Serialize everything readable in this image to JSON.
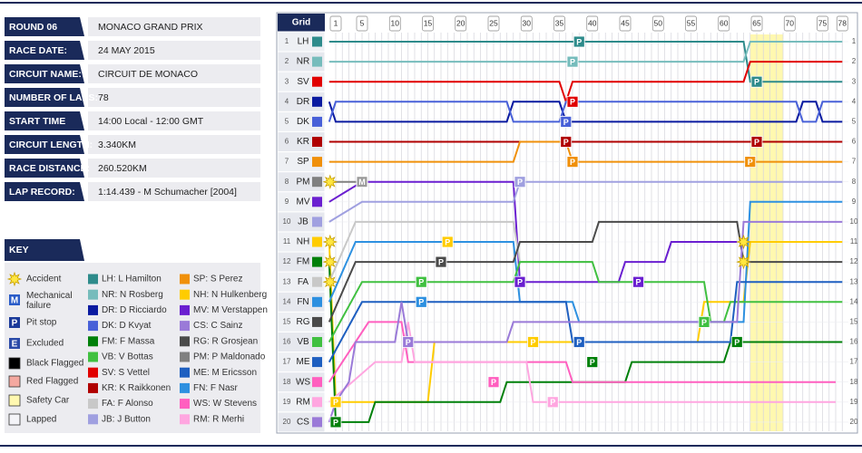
{
  "info": [
    {
      "label": "ROUND 06",
      "value": "MONACO GRAND PRIX"
    },
    {
      "label": "RACE DATE:",
      "value": "24 MAY 2015"
    },
    {
      "label": "CIRCUIT NAME:",
      "value": "CIRCUIT DE MONACO"
    },
    {
      "label": "NUMBER OF LAPS:",
      "value": "78"
    },
    {
      "label": "START TIME",
      "value": "14:00 Local - 12:00 GMT"
    },
    {
      "label": "CIRCUIT LENGTH:",
      "value": "3.340KM"
    },
    {
      "label": "RACE DISTANCE:",
      "value": "260.520KM"
    },
    {
      "label": "LAP RECORD:",
      "value": "1:14.439 - M Schumacher [2004]"
    }
  ],
  "key": {
    "title": "KEY",
    "symbols": [
      {
        "label": "Accident",
        "kind": "star"
      },
      {
        "label": "Mechanical failure",
        "kind": "letter",
        "symbol": "M",
        "color": "#2a5cc8"
      },
      {
        "label": "Pit stop",
        "kind": "letter",
        "symbol": "P",
        "color": "#1a3a9a"
      },
      {
        "label": "Excluded",
        "kind": "letter",
        "symbol": "E",
        "color": "#2a4aa8"
      },
      {
        "label": "Black Flagged",
        "kind": "box",
        "color": "#000000"
      },
      {
        "label": "Red Flagged",
        "kind": "box",
        "color": "#f4a8a0"
      },
      {
        "label": "Safety Car",
        "kind": "box",
        "color": "#fff8b0"
      },
      {
        "label": "Lapped",
        "kind": "box",
        "color": "#f4f4f8"
      }
    ],
    "drivers": [
      {
        "label": "LH: L Hamilton",
        "color": "#2e8b8b"
      },
      {
        "label": "NR: N Rosberg",
        "color": "#76bcbc"
      },
      {
        "label": "DR: D Ricciardo",
        "color": "#0a1aa0"
      },
      {
        "label": "DK: D Kvyat",
        "color": "#4860d8"
      },
      {
        "label": "FM: F Massa",
        "color": "#00800a"
      },
      {
        "label": "VB: V Bottas",
        "color": "#40c040"
      },
      {
        "label": "SV: S Vettel",
        "color": "#e10000"
      },
      {
        "label": "KR: K Raikkonen",
        "color": "#b00000"
      },
      {
        "label": "FA: F Alonso",
        "color": "#c8c8c8"
      },
      {
        "label": "JB: J Button",
        "color": "#a0a0e0"
      },
      {
        "label": "SP: S Perez",
        "color": "#f0900a"
      },
      {
        "label": "NH: N Hulkenberg",
        "color": "#ffcc00"
      },
      {
        "label": "MV: M Verstappen",
        "color": "#6a1fd0"
      },
      {
        "label": "CS: C Sainz",
        "color": "#9a7ad8"
      },
      {
        "label": "RG: R Grosjean",
        "color": "#4a4a4a"
      },
      {
        "label": "PM: P Maldonado",
        "color": "#808080"
      },
      {
        "label": "ME: M Ericsson",
        "color": "#1e5fc0"
      },
      {
        "label": "FN: F Nasr",
        "color": "#2d90e0"
      },
      {
        "label": "WS: W Stevens",
        "color": "#ff5fbf"
      },
      {
        "label": "RM: R Merhi",
        "color": "#ffa6e0"
      }
    ]
  },
  "lapchart": {
    "grid_label": "Grid",
    "lap_ticks": [
      1,
      5,
      10,
      15,
      20,
      25,
      30,
      35,
      40,
      45,
      50,
      55,
      60,
      65,
      70,
      75,
      78
    ],
    "laps": 78,
    "positions": [
      1,
      2,
      3,
      4,
      5,
      6,
      7,
      8,
      9,
      10,
      11,
      12,
      13,
      14,
      15,
      16,
      17,
      18,
      19,
      20
    ],
    "safety_car": [
      64,
      69
    ],
    "drivers": [
      {
        "code": "LH",
        "color": "#2e8b8b",
        "trace": [
          [
            0,
            1
          ],
          [
            63,
            1
          ],
          [
            64,
            3
          ],
          [
            78,
            3
          ]
        ]
      },
      {
        "code": "NR",
        "color": "#76bcbc",
        "trace": [
          [
            0,
            2
          ],
          [
            63,
            2
          ],
          [
            64,
            1
          ],
          [
            78,
            1
          ]
        ]
      },
      {
        "code": "SV",
        "color": "#e10000",
        "trace": [
          [
            0,
            3
          ],
          [
            35,
            3
          ],
          [
            36,
            4
          ],
          [
            37,
            3
          ],
          [
            63,
            3
          ],
          [
            64,
            2
          ],
          [
            78,
            2
          ]
        ]
      },
      {
        "code": "DR",
        "color": "#0a1aa0",
        "trace": [
          [
            0,
            4
          ],
          [
            1,
            5
          ],
          [
            27,
            5
          ],
          [
            28,
            4
          ],
          [
            35,
            4
          ],
          [
            36,
            5
          ],
          [
            71,
            5
          ],
          [
            72,
            4
          ],
          [
            74,
            4
          ],
          [
            75,
            5
          ],
          [
            78,
            5
          ]
        ]
      },
      {
        "code": "DK",
        "color": "#4860d8",
        "trace": [
          [
            0,
            5
          ],
          [
            1,
            4
          ],
          [
            27,
            4
          ],
          [
            28,
            5
          ],
          [
            35,
            5
          ],
          [
            36,
            4
          ],
          [
            71,
            4
          ],
          [
            72,
            5
          ],
          [
            74,
            5
          ],
          [
            75,
            4
          ],
          [
            78,
            4
          ]
        ]
      },
      {
        "code": "KR",
        "color": "#b00000",
        "trace": [
          [
            0,
            6
          ],
          [
            78,
            6
          ]
        ]
      },
      {
        "code": "SP",
        "color": "#f0900a",
        "trace": [
          [
            0,
            7
          ],
          [
            28,
            7
          ],
          [
            29,
            6
          ],
          [
            36,
            6
          ],
          [
            37,
            7
          ],
          [
            78,
            7
          ]
        ]
      },
      {
        "code": "PM",
        "color": "#808080",
        "trace": [
          [
            0,
            8
          ],
          [
            5,
            8
          ]
        ]
      },
      {
        "code": "MV",
        "color": "#6a1fd0",
        "trace": [
          [
            0,
            9
          ],
          [
            5,
            8
          ],
          [
            28,
            8
          ],
          [
            29,
            13
          ],
          [
            44,
            13
          ],
          [
            45,
            12
          ],
          [
            51,
            12
          ],
          [
            52,
            11
          ],
          [
            62,
            11
          ]
        ]
      },
      {
        "code": "JB",
        "color": "#a0a0e0",
        "trace": [
          [
            0,
            10
          ],
          [
            5,
            9
          ],
          [
            28,
            9
          ],
          [
            29,
            8
          ],
          [
            78,
            8
          ]
        ]
      },
      {
        "code": "NH",
        "color": "#ffcc00",
        "trace": [
          [
            0,
            11
          ],
          [
            1,
            19
          ],
          [
            15,
            19
          ],
          [
            16,
            16
          ],
          [
            56,
            16
          ],
          [
            57,
            14
          ],
          [
            63,
            14
          ],
          [
            64,
            11
          ],
          [
            78,
            11
          ]
        ]
      },
      {
        "code": "FM",
        "color": "#00800a",
        "trace": [
          [
            0,
            12
          ],
          [
            1,
            20
          ],
          [
            6,
            20
          ],
          [
            7,
            19
          ],
          [
            26,
            19
          ],
          [
            27,
            18
          ],
          [
            45,
            18
          ],
          [
            46,
            17
          ],
          [
            60,
            17
          ],
          [
            61,
            16
          ],
          [
            78,
            16
          ]
        ]
      },
      {
        "code": "FA",
        "color": "#c8c8c8",
        "trace": [
          [
            0,
            13
          ],
          [
            4,
            10
          ],
          [
            28,
            10
          ],
          [
            29,
            12
          ],
          [
            40,
            12
          ]
        ]
      },
      {
        "code": "FN",
        "color": "#2d90e0",
        "trace": [
          [
            0,
            14
          ],
          [
            4,
            11
          ],
          [
            28,
            11
          ],
          [
            29,
            14
          ],
          [
            37,
            14
          ],
          [
            38,
            15
          ],
          [
            63,
            15
          ],
          [
            64,
            9
          ],
          [
            78,
            9
          ]
        ]
      },
      {
        "code": "RG",
        "color": "#4a4a4a",
        "trace": [
          [
            0,
            15
          ],
          [
            4,
            12
          ],
          [
            28,
            12
          ],
          [
            29,
            11
          ],
          [
            40,
            11
          ],
          [
            41,
            10
          ],
          [
            62,
            10
          ],
          [
            63,
            12
          ],
          [
            78,
            12
          ]
        ]
      },
      {
        "code": "VB",
        "color": "#40c040",
        "trace": [
          [
            0,
            16
          ],
          [
            5,
            13
          ],
          [
            28,
            13
          ],
          [
            29,
            12
          ],
          [
            40,
            12
          ],
          [
            41,
            13
          ],
          [
            57,
            13
          ],
          [
            58,
            15
          ],
          [
            60,
            15
          ],
          [
            61,
            14
          ],
          [
            78,
            14
          ]
        ]
      },
      {
        "code": "ME",
        "color": "#1e5fc0",
        "trace": [
          [
            0,
            17
          ],
          [
            5,
            14
          ],
          [
            36,
            14
          ],
          [
            37,
            16
          ],
          [
            61,
            16
          ],
          [
            62,
            13
          ],
          [
            78,
            13
          ]
        ]
      },
      {
        "code": "WS",
        "color": "#ff5fbf",
        "trace": [
          [
            0,
            18
          ],
          [
            6,
            15
          ],
          [
            11,
            15
          ],
          [
            12,
            17
          ],
          [
            36,
            17
          ],
          [
            37,
            18
          ],
          [
            77,
            18
          ]
        ]
      },
      {
        "code": "RM",
        "color": "#ffa6e0",
        "trace": [
          [
            0,
            19
          ],
          [
            7,
            17
          ],
          [
            11,
            17
          ],
          [
            12,
            15
          ],
          [
            13,
            17
          ],
          [
            30,
            17
          ],
          [
            31,
            19
          ],
          [
            77,
            19
          ]
        ]
      },
      {
        "code": "CS",
        "color": "#9a7ad8",
        "trace": [
          [
            0,
            20
          ],
          [
            1,
            19
          ],
          [
            3,
            18
          ],
          [
            4,
            16
          ],
          [
            10,
            16
          ],
          [
            11,
            14
          ],
          [
            12,
            16
          ],
          [
            27,
            16
          ],
          [
            28,
            15
          ],
          [
            62,
            15
          ],
          [
            63,
            10
          ],
          [
            78,
            10
          ]
        ]
      }
    ],
    "pits": [
      {
        "driver": "LH",
        "lap": 38,
        "position": 1
      },
      {
        "driver": "NR",
        "lap": 37,
        "position": 2
      },
      {
        "driver": "LH",
        "lap": 65,
        "position": 3
      },
      {
        "driver": "SV",
        "lap": 37,
        "position": 4
      },
      {
        "driver": "DK",
        "lap": 36,
        "position": 5
      },
      {
        "driver": "KR",
        "lap": 36,
        "position": 6
      },
      {
        "driver": "KR",
        "lap": 65,
        "position": 6
      },
      {
        "driver": "SP",
        "lap": 37,
        "position": 7
      },
      {
        "driver": "SP",
        "lap": 64,
        "position": 7
      },
      {
        "driver": "JB",
        "lap": 29,
        "position": 8
      },
      {
        "driver": "MV",
        "lap": 29,
        "position": 13
      },
      {
        "driver": "MV",
        "lap": 47,
        "position": 13
      },
      {
        "driver": "NH",
        "lap": 18,
        "position": 11
      },
      {
        "driver": "RG",
        "lap": 17,
        "position": 12
      },
      {
        "driver": "VB",
        "lap": 14,
        "position": 13
      },
      {
        "driver": "FN",
        "lap": 14,
        "position": 14
      },
      {
        "driver": "VB",
        "lap": 57,
        "position": 15
      },
      {
        "driver": "ME",
        "lap": 38,
        "position": 16
      },
      {
        "driver": "NH",
        "lap": 31,
        "position": 16
      },
      {
        "driver": "FM",
        "lap": 62,
        "position": 16
      },
      {
        "driver": "FM",
        "lap": 40,
        "position": 17
      },
      {
        "driver": "WS",
        "lap": 25,
        "position": 18
      },
      {
        "driver": "RM",
        "lap": 34,
        "position": 19
      },
      {
        "driver": "NH",
        "lap": 1,
        "position": 19
      },
      {
        "driver": "FM",
        "lap": 1,
        "position": 20
      },
      {
        "driver": "CS",
        "lap": 12,
        "position": 16
      }
    ],
    "accidents": [
      {
        "lap": 0,
        "position": 8
      },
      {
        "lap": 0,
        "position": 11
      },
      {
        "lap": 0,
        "position": 12
      },
      {
        "lap": 0,
        "position": 13
      },
      {
        "lap": 63,
        "position": 11
      },
      {
        "lap": 63,
        "position": 12
      }
    ],
    "mechanical": [
      {
        "lap": 5,
        "position": 8
      }
    ]
  }
}
